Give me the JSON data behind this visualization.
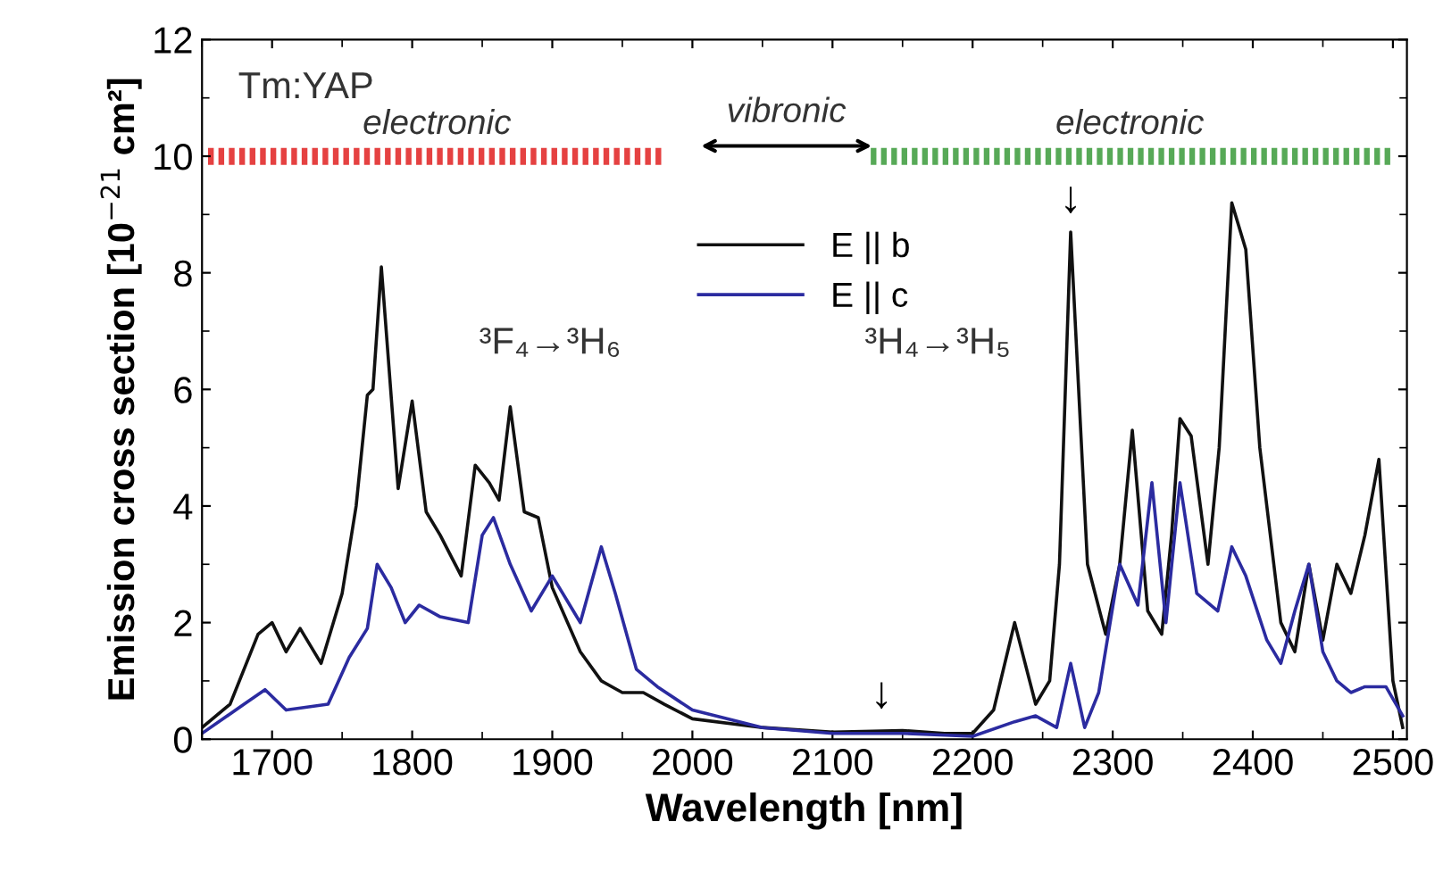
{
  "chart_data": {
    "type": "line",
    "xlabel": "Wavelength [nm]",
    "ylabel": "Emission cross section [10$^{−21}$ cm²]",
    "xlim": [
      1650,
      2510
    ],
    "ylim": [
      0,
      12
    ],
    "xticks": [
      1700,
      1800,
      1900,
      2000,
      2100,
      2200,
      2300,
      2400,
      2500
    ],
    "yticks": [
      0,
      2,
      4,
      6,
      8,
      10,
      12
    ],
    "grid": false,
    "legend": "top",
    "marker": "none",
    "line_style": "solid",
    "annotations": [
      "Tm:YAP",
      "³F₄→³H₆",
      "³H₄→³H₅",
      "vibronic",
      "electronic",
      "electronic",
      {
        "text": "↓",
        "x": 2270,
        "y": 8.8
      },
      {
        "text": "↓",
        "x": 2135,
        "y": 0.3
      }
    ],
    "series": [
      {
        "name": "E || b",
        "color": "#111111",
        "x": [
          1650,
          1670,
          1690,
          1700,
          1710,
          1720,
          1735,
          1750,
          1760,
          1768,
          1772,
          1778,
          1790,
          1800,
          1810,
          1820,
          1835,
          1845,
          1855,
          1862,
          1870,
          1880,
          1890,
          1900,
          1920,
          1935,
          1950,
          1965,
          1980,
          2000,
          2050,
          2100,
          2150,
          2180,
          2200,
          2215,
          2230,
          2245,
          2255,
          2262,
          2270,
          2282,
          2295,
          2305,
          2314,
          2325,
          2335,
          2342,
          2348,
          2356,
          2368,
          2376,
          2385,
          2395,
          2405,
          2420,
          2430,
          2440,
          2450,
          2460,
          2470,
          2480,
          2490,
          2500,
          2507
        ],
        "values": [
          0.2,
          0.6,
          1.8,
          2.0,
          1.5,
          1.9,
          1.3,
          2.5,
          4.0,
          5.9,
          6.0,
          8.1,
          4.3,
          5.8,
          3.9,
          3.5,
          2.8,
          4.7,
          4.4,
          4.1,
          5.7,
          3.9,
          3.8,
          2.6,
          1.5,
          1.0,
          0.8,
          0.8,
          0.6,
          0.35,
          0.2,
          0.12,
          0.15,
          0.1,
          0.1,
          0.5,
          2.0,
          0.6,
          1.0,
          3.0,
          8.7,
          3.0,
          1.8,
          3.0,
          5.3,
          2.2,
          1.8,
          3.5,
          5.5,
          5.2,
          3.0,
          5.0,
          9.2,
          8.4,
          5.0,
          2.0,
          1.5,
          3.0,
          1.7,
          3.0,
          2.5,
          3.5,
          4.8,
          1.0,
          0.2
        ]
      },
      {
        "name": "E || c",
        "color": "#2b2ba0",
        "x": [
          1650,
          1680,
          1695,
          1710,
          1740,
          1755,
          1768,
          1775,
          1785,
          1795,
          1805,
          1820,
          1840,
          1850,
          1858,
          1870,
          1885,
          1900,
          1915,
          1920,
          1935,
          1945,
          1960,
          1975,
          2000,
          2050,
          2100,
          2150,
          2200,
          2230,
          2245,
          2260,
          2270,
          2280,
          2290,
          2305,
          2318,
          2328,
          2338,
          2348,
          2360,
          2375,
          2385,
          2395,
          2410,
          2420,
          2430,
          2440,
          2450,
          2460,
          2470,
          2480,
          2495,
          2507
        ],
        "values": [
          0.1,
          0.6,
          0.85,
          0.5,
          0.6,
          1.4,
          1.9,
          3.0,
          2.6,
          2.0,
          2.3,
          2.1,
          2.0,
          3.5,
          3.8,
          3.0,
          2.2,
          2.8,
          2.2,
          2.0,
          3.3,
          2.5,
          1.2,
          0.9,
          0.5,
          0.2,
          0.1,
          0.1,
          0.05,
          0.3,
          0.4,
          0.2,
          1.3,
          0.2,
          0.8,
          3.0,
          2.3,
          4.4,
          2.0,
          4.4,
          2.5,
          2.2,
          3.3,
          2.8,
          1.7,
          1.3,
          2.2,
          3.0,
          1.5,
          1.0,
          0.8,
          0.9,
          0.9,
          0.4
        ]
      }
    ]
  }
}
